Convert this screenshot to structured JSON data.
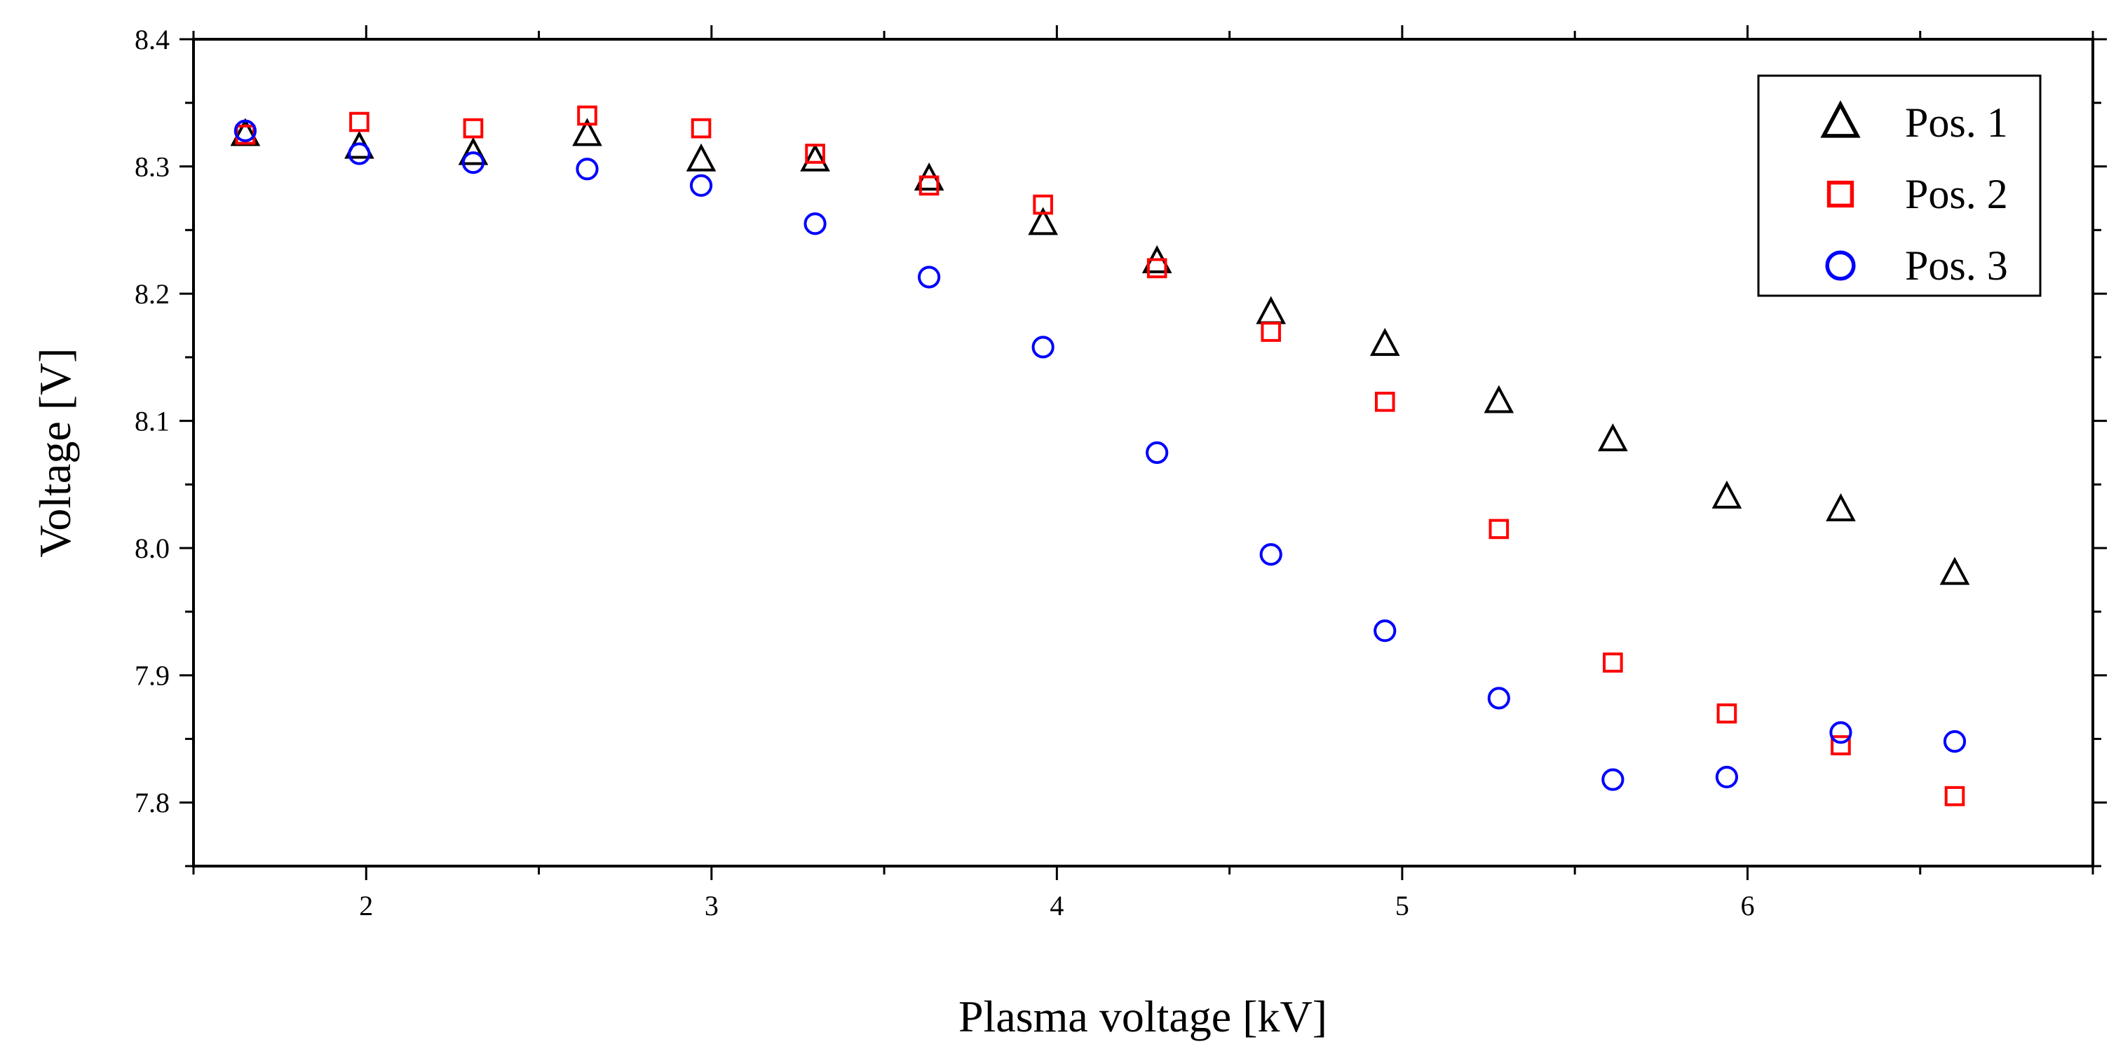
{
  "chart_data": {
    "type": "scatter",
    "title": "",
    "xlabel": "Plasma voltage [kV]",
    "ylabel": "Voltage [V]",
    "xlim": [
      1.5,
      7.0
    ],
    "ylim": [
      7.75,
      8.4
    ],
    "x_ticks": [
      2,
      3,
      4,
      5,
      6
    ],
    "x_tick_labels": [
      "2",
      "3",
      "4",
      "5",
      "6"
    ],
    "y_ticks": [
      7.8,
      7.9,
      8.0,
      8.1,
      8.2,
      8.3,
      8.4
    ],
    "y_tick_labels": [
      "7.8",
      "7.9",
      "8.0",
      "8.1",
      "8.2",
      "8.3",
      "8.4"
    ],
    "grid": false,
    "legend_position": "top-right",
    "x": [
      1.65,
      1.98,
      2.31,
      2.64,
      2.97,
      3.3,
      3.63,
      3.96,
      4.29,
      4.62,
      4.95,
      5.28,
      5.61,
      5.94,
      6.27,
      6.6
    ],
    "series": [
      {
        "name": "Pos. 1",
        "marker": "triangle",
        "color": "#000000",
        "values": [
          8.325,
          8.315,
          8.31,
          8.325,
          8.305,
          8.305,
          8.29,
          8.255,
          8.225,
          8.185,
          8.16,
          8.115,
          8.085,
          8.04,
          8.03,
          7.98
        ]
      },
      {
        "name": "Pos. 2",
        "marker": "square",
        "color": "#ff0000",
        "values": [
          8.325,
          8.335,
          8.33,
          8.34,
          8.33,
          8.31,
          8.285,
          8.27,
          8.22,
          8.17,
          8.115,
          8.015,
          7.91,
          7.87,
          7.845,
          7.805
        ]
      },
      {
        "name": "Pos. 3",
        "marker": "circle",
        "color": "#0000ff",
        "values": [
          8.328,
          8.31,
          8.303,
          8.298,
          8.285,
          8.255,
          8.213,
          8.158,
          8.075,
          7.995,
          7.935,
          7.882,
          7.818,
          7.82,
          7.855,
          7.848
        ]
      }
    ]
  }
}
